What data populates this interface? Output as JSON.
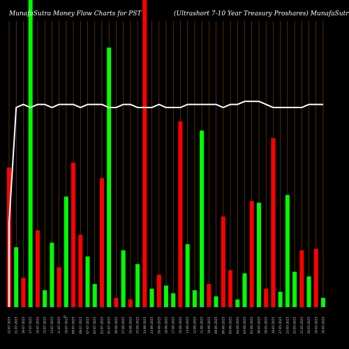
{
  "header": {
    "left": "MunafaSutra  Money Flow  Charts for PST",
    "right": "(Ultrashort 7-10  Year Treasury Proshares) MunafaSutra.com"
  },
  "chart_data": {
    "type": "bar",
    "zero_marker": "0",
    "ylim": [
      0,
      100
    ],
    "categories": [
      "22-07-2025",
      "21-07-2025",
      "18-07-2025",
      "17-07-2025",
      "16-07-2025",
      "15-07-2025",
      "14-07-2025",
      "11-07-2025",
      "10-07-2025",
      "09-07-2025",
      "08-07-2025",
      "07-07-2025",
      "03-07-2025",
      "02-07-2025",
      "01-07-2025",
      "30-06-2025",
      "27-06-2025",
      "26-06-2025",
      "25-06-2025",
      "24-06-2025",
      "23-06-2025",
      "20-06-2025",
      "18-06-2025",
      "17-06-2025",
      "16-06-2025",
      "13-06-2025",
      "12-06-2025",
      "11-06-2025",
      "10-06-2025",
      "09-06-2025",
      "06-06-2025",
      "05-06-2025",
      "04-06-2025",
      "03-06-2025",
      "02-06-2025",
      "30-05-2025",
      "29-05-2025",
      "28-05-2025",
      "27-05-2025",
      "23-05-2025",
      "22-05-2025",
      "21-05-2025",
      "20-05-2025",
      "19-05-2025",
      "16-05-2025"
    ],
    "values": [
      45.5,
      19.5,
      9.5,
      100,
      25,
      5.5,
      21,
      13,
      36,
      47,
      23.5,
      16.5,
      7.5,
      42,
      84.5,
      3,
      18.5,
      2.5,
      14,
      100,
      6,
      10.5,
      7,
      4.5,
      60.5,
      20.5,
      5.5,
      57.5,
      7.5,
      3.5,
      29.5,
      12,
      2.5,
      11,
      34.5,
      34,
      6,
      55,
      5,
      36.5,
      11.5,
      18.5,
      10,
      19,
      3
    ],
    "directions": [
      "down",
      "up",
      "down",
      "up",
      "down",
      "up",
      "up",
      "down",
      "up",
      "down",
      "down",
      "up",
      "up",
      "down",
      "up",
      "down",
      "up",
      "down",
      "up",
      "down",
      "up",
      "down",
      "up",
      "up",
      "down",
      "up",
      "up",
      "up",
      "down",
      "up",
      "down",
      "down",
      "up",
      "up",
      "down",
      "up",
      "down",
      "down",
      "up",
      "up",
      "up",
      "down",
      "up",
      "down",
      "up"
    ],
    "overlay_line": [
      27.5,
      65,
      66,
      65,
      66,
      66,
      65,
      66,
      66,
      66,
      65,
      66,
      66,
      66,
      65,
      65,
      66,
      66,
      65,
      65,
      65,
      66,
      65,
      65,
      65,
      66,
      66,
      66,
      66,
      66,
      65,
      66,
      66,
      67,
      67,
      67,
      66,
      65,
      65,
      65,
      65,
      65,
      66,
      66,
      66
    ],
    "colors": {
      "up": "#00ff00",
      "down": "#ff0000",
      "background": "#000000",
      "gridline": "#8a4a00",
      "line": "#ffffff"
    },
    "grid": "vertical"
  }
}
